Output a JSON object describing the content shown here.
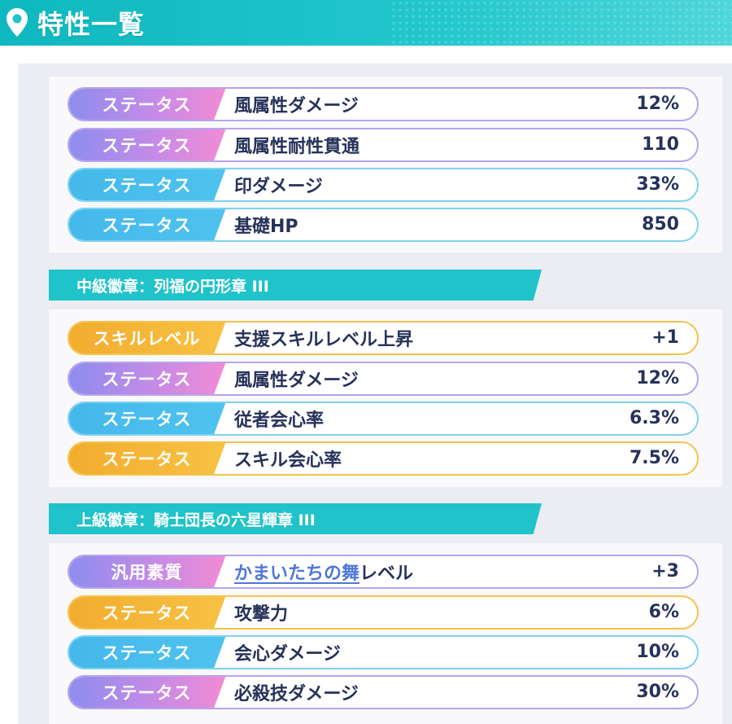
{
  "header": {
    "title": "特性一覧",
    "icon": "map-pin-icon"
  },
  "colors": {
    "header": "#1fc3c9",
    "tag_purple": "#c58be6",
    "tag_blue": "#44b8ea",
    "tag_gold": "#f2ac2e",
    "text": "#26325a",
    "link": "#4f76d8"
  },
  "groups": [
    {
      "title": "",
      "rows": [
        {
          "tag": "ステータス",
          "name": "風属性ダメージ",
          "value": "12%"
        },
        {
          "tag": "ステータス",
          "name": "風属性耐性貫通",
          "value": "110"
        },
        {
          "tag": "ステータス",
          "name": "印ダメージ",
          "value": "33%"
        },
        {
          "tag": "ステータス",
          "name": "基礎HP",
          "value": "850"
        }
      ]
    },
    {
      "title": "中級徽章：列福の円形章 III",
      "rows": [
        {
          "tag": "スキルレベル",
          "name": "支援スキルレベル上昇",
          "value": "+1"
        },
        {
          "tag": "ステータス",
          "name": "風属性ダメージ",
          "value": "12%"
        },
        {
          "tag": "ステータス",
          "name": "従者会心率",
          "value": "6.3%"
        },
        {
          "tag": "ステータス",
          "name": "スキル会心率",
          "value": "7.5%"
        }
      ]
    },
    {
      "title": "上級徽章：騎士団長の六星輝章 III",
      "rows": [
        {
          "tag": "汎用素質",
          "name_link": "かまいたちの舞",
          "name": "レベル",
          "value": "+3"
        },
        {
          "tag": "ステータス",
          "name": "攻撃力",
          "value": "6%"
        },
        {
          "tag": "ステータス",
          "name": "会心ダメージ",
          "value": "10%"
        },
        {
          "tag": "ステータス",
          "name": "必殺技ダメージ",
          "value": "30%"
        }
      ]
    }
  ]
}
